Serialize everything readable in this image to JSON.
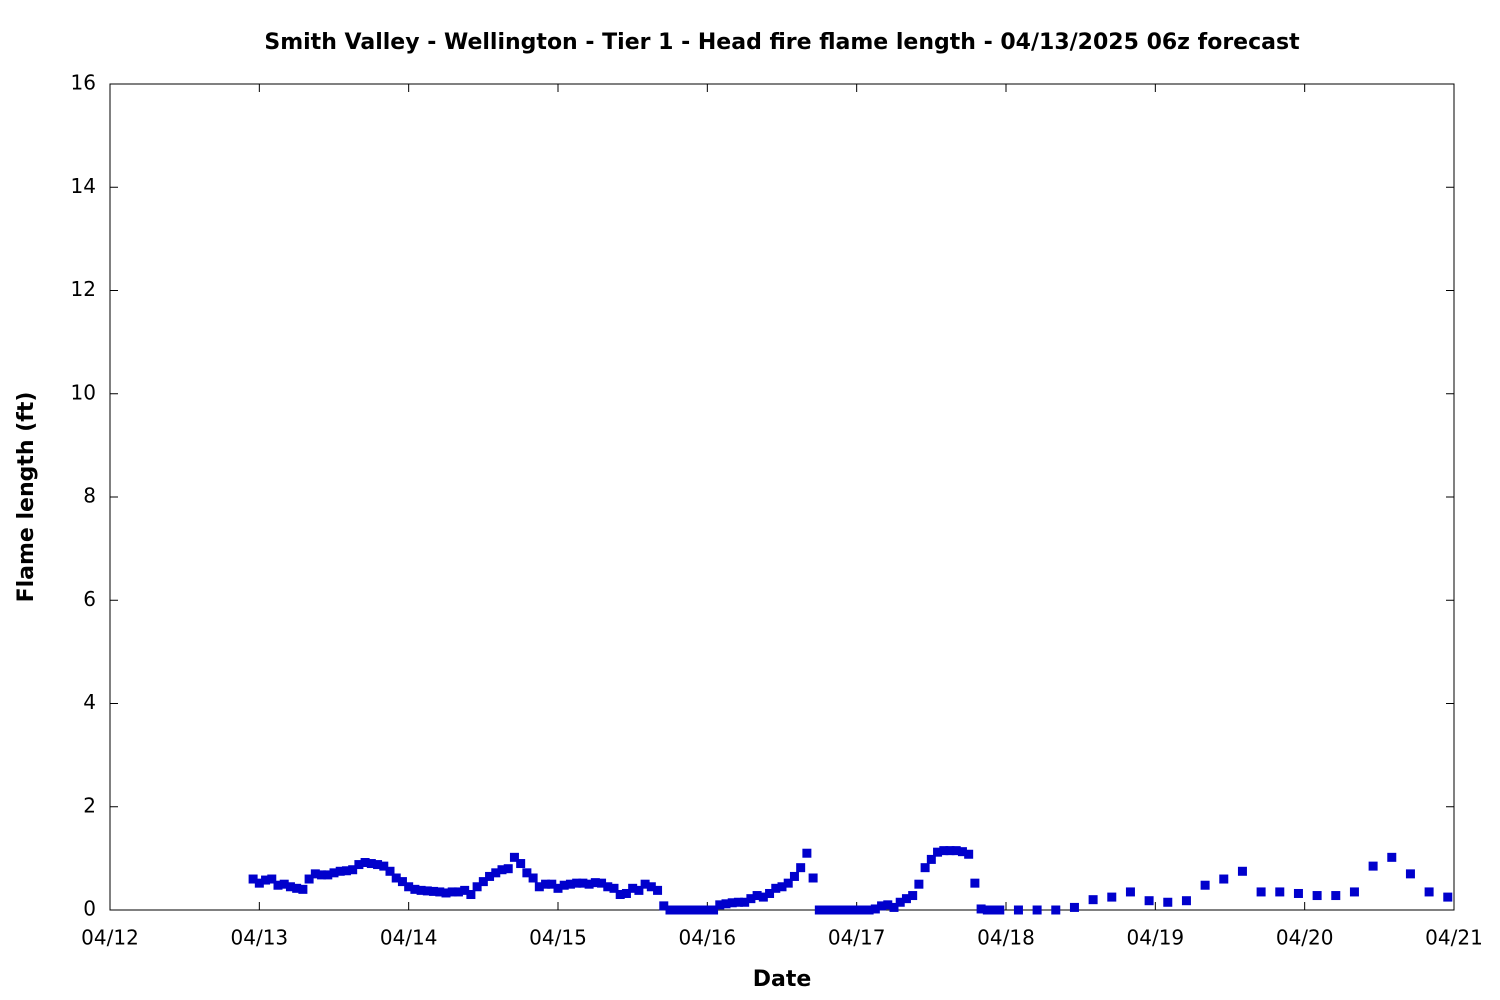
{
  "chart_data": {
    "type": "scatter",
    "title": "Smith Valley - Wellington - Tier 1 - Head fire flame length - 04/13/2025 06z forecast",
    "x_label": "Date",
    "y_label": "Flame length (ft)",
    "color": "#0000cc",
    "xlim": [
      0,
      216
    ],
    "xticks": [
      {
        "value": 0,
        "label": "04/12"
      },
      {
        "value": 24,
        "label": "04/13"
      },
      {
        "value": 48,
        "label": "04/14"
      },
      {
        "value": 72,
        "label": "04/15"
      },
      {
        "value": 96,
        "label": "04/16"
      },
      {
        "value": 120,
        "label": "04/17"
      },
      {
        "value": 144,
        "label": "04/18"
      },
      {
        "value": 168,
        "label": "04/19"
      },
      {
        "value": 192,
        "label": "04/20"
      },
      {
        "value": 216,
        "label": "04/21"
      }
    ],
    "ylim": [
      0,
      16
    ],
    "yticks": [
      0,
      2,
      4,
      6,
      8,
      10,
      12,
      14,
      16
    ],
    "x": [
      23,
      24,
      25,
      26,
      27,
      28,
      29,
      30,
      31,
      32,
      33,
      34,
      35,
      36,
      37,
      38,
      39,
      40,
      41,
      42,
      43,
      44,
      45,
      46,
      47,
      48,
      49,
      50,
      51,
      52,
      53,
      54,
      55,
      56,
      57,
      58,
      59,
      60,
      61,
      62,
      63,
      64,
      65,
      66,
      67,
      68,
      69,
      70,
      71,
      72,
      73,
      74,
      75,
      76,
      77,
      78,
      79,
      80,
      81,
      82,
      83,
      84,
      85,
      86,
      87,
      88,
      89,
      90,
      91,
      92,
      93,
      94,
      95,
      96,
      97,
      98,
      99,
      100,
      101,
      102,
      103,
      104,
      105,
      106,
      107,
      108,
      109,
      110,
      111,
      112,
      113,
      114,
      115,
      116,
      117,
      118,
      119,
      120,
      121,
      122,
      123,
      124,
      125,
      126,
      127,
      128,
      129,
      130,
      131,
      132,
      133,
      134,
      135,
      136,
      137,
      138,
      139,
      140,
      141,
      142,
      143,
      146,
      149,
      152,
      155,
      158,
      161,
      164,
      167,
      170,
      173,
      176,
      179,
      182,
      185,
      188,
      191,
      194,
      197,
      200,
      203,
      206,
      209,
      212,
      215
    ],
    "values": [
      0.6,
      0.52,
      0.58,
      0.6,
      0.48,
      0.5,
      0.45,
      0.42,
      0.4,
      0.6,
      0.7,
      0.68,
      0.68,
      0.72,
      0.75,
      0.76,
      0.78,
      0.88,
      0.92,
      0.9,
      0.88,
      0.85,
      0.75,
      0.62,
      0.55,
      0.45,
      0.4,
      0.38,
      0.37,
      0.36,
      0.35,
      0.33,
      0.35,
      0.35,
      0.38,
      0.3,
      0.45,
      0.55,
      0.65,
      0.72,
      0.78,
      0.8,
      1.02,
      0.9,
      0.72,
      0.62,
      0.45,
      0.5,
      0.5,
      0.42,
      0.48,
      0.5,
      0.52,
      0.52,
      0.5,
      0.53,
      0.52,
      0.45,
      0.42,
      0.3,
      0.32,
      0.42,
      0.38,
      0.5,
      0.45,
      0.38,
      0.08,
      0,
      0,
      0,
      0,
      0,
      0,
      0,
      0,
      0.1,
      0.12,
      0.14,
      0.15,
      0.15,
      0.22,
      0.28,
      0.25,
      0.32,
      0.42,
      0.45,
      0.52,
      0.65,
      0.82,
      1.1,
      0.62,
      0,
      0,
      0,
      0,
      0,
      0,
      0,
      0,
      0,
      0.02,
      0.08,
      0.1,
      0.05,
      0.15,
      0.22,
      0.28,
      0.5,
      0.82,
      0.98,
      1.12,
      1.15,
      1.15,
      1.15,
      1.13,
      1.08,
      0.52,
      0.02,
      0,
      0,
      0,
      0,
      0,
      0,
      0.05,
      0.2,
      0.25,
      0.35,
      0.18,
      0.15,
      0.18,
      0.48,
      0.6,
      0.75,
      0.35,
      0.35,
      0.32,
      0.28,
      0.28,
      0.35,
      0.85,
      1.02,
      0.7,
      0.35,
      0.25
    ]
  }
}
